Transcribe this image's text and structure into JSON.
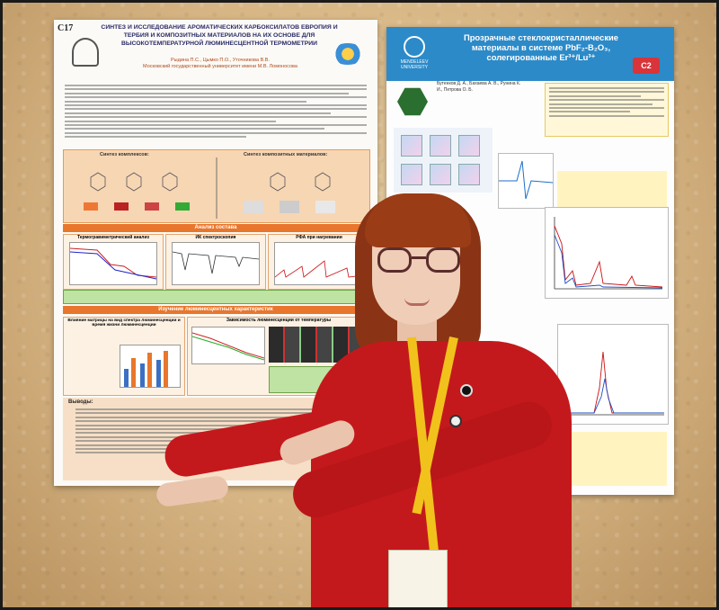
{
  "poster_left": {
    "id": "C17",
    "title": "СИНТЕЗ И ИССЛЕДОВАНИЕ АРОМАТИЧЕСКИХ КАРБОКСИЛАТОВ ЕВРОПИЯ И ТЕРБИЯ И КОМПОЗИТНЫХ МАТЕРИАЛОВ НА ИХ ОСНОВЕ ДЛЯ ВЫСОКОТЕМПЕРАТУРНОЙ ЛЮМИНЕСЦЕНТНОЙ ТЕРМОМЕТРИИ",
    "authors": "Рыдина П.С., Цымко П.О., Уточникова В.В.",
    "affiliation": "Московский государственный университет имени М.В. Ломоносова",
    "synthesis_complex": "Синтез комплексов:",
    "synthesis_composite": "Синтез композитных материалов:",
    "section_composition": "Анализ состава",
    "tga_title": "Термогравиметрический анализ",
    "ir_title": "ИК спектроскопия",
    "xrd_title": "РФА при нагревании",
    "section_luminescence": "Изучение люминесцентных характеристик",
    "matrix_title": "Влияние матрицы на вид спектра люминесценции и время жизни люминесценции",
    "temp_title": "Зависимость люминесценции от температуры",
    "conclusions_title": "Выводы:"
  },
  "poster_right": {
    "title_line1": "Прозрачные стеклокристаллические",
    "title_line2": "материалы в системе PbF₂-B₂O₃,",
    "title_line3": "солегированные Er³⁺/Lu³⁺",
    "badge": "C2",
    "logo_label": "MENDELEEV UNIVERSITY",
    "authors": "Бутенков Д. А., Бахаева А. В., Рунина К. И., Петрова О. Б."
  },
  "colors": {
    "wall": "#d6b483",
    "sweater": "#c4191c",
    "hair": "#8a3415",
    "lanyard": "#f1c21b",
    "poster_orange": "#e8762c",
    "poster_blue": "#2c8ac8"
  }
}
